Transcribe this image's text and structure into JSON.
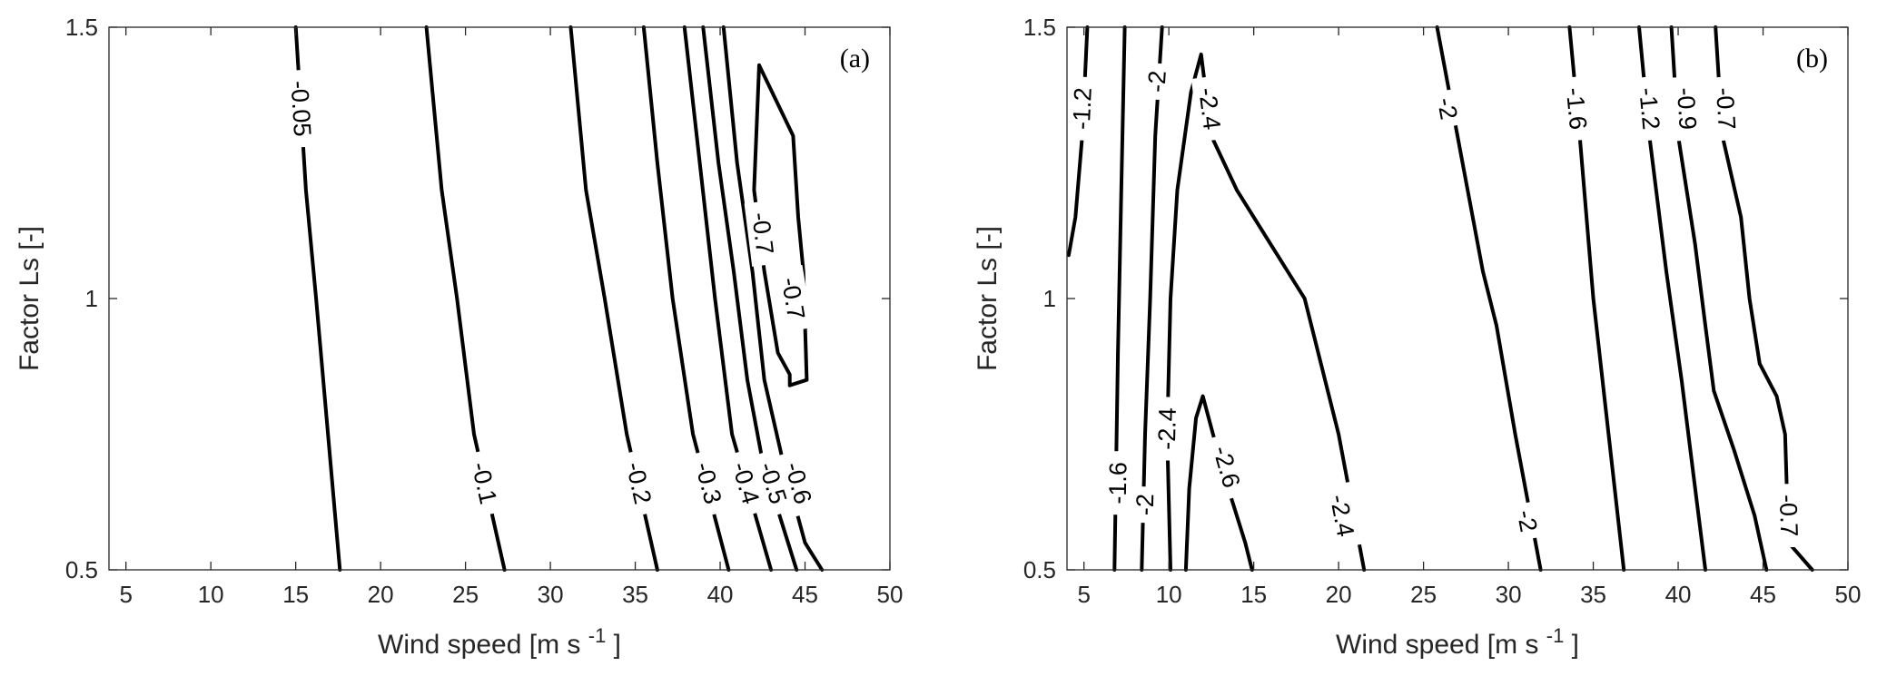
{
  "chart_data": [
    {
      "type": "contour",
      "panel_label": "(a)",
      "xlabel": "Wind speed [m  s",
      "xlabel_superscript": "-1",
      "xlabel_suffix": "]",
      "ylabel": "Factor Ls [-]",
      "xlim": [
        4,
        50
      ],
      "ylim": [
        0.5,
        1.5
      ],
      "xticks": [
        5,
        10,
        15,
        20,
        25,
        30,
        35,
        40,
        45,
        50
      ],
      "yticks": [
        0.5,
        1,
        1.5
      ],
      "xtick_labels": [
        "5",
        "10",
        "15",
        "20",
        "25",
        "30",
        "35",
        "40",
        "45",
        "50"
      ],
      "ytick_labels": [
        "0.5",
        "1",
        "1.5"
      ],
      "contours": [
        {
          "level": "-0.05",
          "points": [
            [
              15.0,
              1.5
            ],
            [
              15.6,
              1.2
            ],
            [
              16.2,
              1.0
            ],
            [
              16.9,
              0.75
            ],
            [
              17.6,
              0.5
            ]
          ],
          "labels": [
            {
              "x": 15.3,
              "y": 1.35,
              "text": "-0.05"
            }
          ]
        },
        {
          "level": "-0.1",
          "points": [
            [
              22.7,
              1.5
            ],
            [
              23.6,
              1.2
            ],
            [
              24.5,
              1.0
            ],
            [
              25.5,
              0.75
            ],
            [
              27.3,
              0.5
            ]
          ],
          "labels": [
            {
              "x": 26.1,
              "y": 0.66,
              "text": "-0.1"
            }
          ]
        },
        {
          "level": "-0.2",
          "points": [
            [
              31.2,
              1.5
            ],
            [
              32.1,
              1.2
            ],
            [
              33.2,
              1.0
            ],
            [
              34.5,
              0.75
            ],
            [
              36.3,
              0.5
            ]
          ],
          "labels": [
            {
              "x": 35.2,
              "y": 0.66,
              "text": "-0.2"
            }
          ]
        },
        {
          "level": "-0.3",
          "points": [
            [
              35.5,
              1.5
            ],
            [
              36.3,
              1.25
            ],
            [
              37.2,
              1.0
            ],
            [
              38.4,
              0.75
            ],
            [
              40.5,
              0.5
            ]
          ],
          "labels": [
            {
              "x": 39.3,
              "y": 0.66,
              "text": "-0.3"
            }
          ]
        },
        {
          "level": "-0.4",
          "points": [
            [
              37.9,
              1.5
            ],
            [
              38.8,
              1.25
            ],
            [
              39.7,
              1.0
            ],
            [
              40.7,
              0.75
            ],
            [
              43.0,
              0.5
            ]
          ],
          "labels": [
            {
              "x": 41.5,
              "y": 0.66,
              "text": "-0.4"
            }
          ]
        },
        {
          "level": "-0.5",
          "points": [
            [
              39.0,
              1.5
            ],
            [
              39.9,
              1.25
            ],
            [
              40.8,
              1.05
            ],
            [
              41.6,
              0.85
            ],
            [
              42.5,
              0.7
            ],
            [
              44.5,
              0.5
            ]
          ],
          "labels": [
            {
              "x": 43.1,
              "y": 0.66,
              "text": "-0.5"
            }
          ]
        },
        {
          "level": "-0.6",
          "points": [
            [
              40.2,
              1.5
            ],
            [
              41.0,
              1.25
            ],
            [
              41.9,
              1.05
            ],
            [
              42.6,
              0.85
            ],
            [
              43.7,
              0.7
            ],
            [
              45.0,
              0.55
            ],
            [
              46.0,
              0.5
            ]
          ],
          "labels": [
            {
              "x": 44.6,
              "y": 0.66,
              "text": "-0.6"
            }
          ]
        },
        {
          "level": "-0.7",
          "points": [
            [
              42.3,
              1.43
            ],
            [
              42.0,
              1.2
            ],
            [
              42.6,
              1.05
            ],
            [
              43.4,
              0.9
            ],
            [
              44.1,
              0.86
            ],
            [
              44.1,
              0.84
            ],
            [
              45.1,
              0.85
            ],
            [
              44.9,
              1.05
            ],
            [
              44.6,
              1.15
            ],
            [
              44.3,
              1.3
            ],
            [
              42.3,
              1.43
            ]
          ],
          "labels": [
            {
              "x": 42.5,
              "y": 1.12,
              "text": "-0.7"
            },
            {
              "x": 44.3,
              "y": 1.0,
              "text": "-0.7"
            }
          ]
        }
      ]
    },
    {
      "type": "contour",
      "panel_label": "(b)",
      "xlabel": "Wind speed [m  s",
      "xlabel_superscript": "-1",
      "xlabel_suffix": "]",
      "ylabel": "Factor Ls [-]",
      "xlim": [
        4,
        50
      ],
      "ylim": [
        0.5,
        1.5
      ],
      "xticks": [
        5,
        10,
        15,
        20,
        25,
        30,
        35,
        40,
        45,
        50
      ],
      "yticks": [
        0.5,
        1,
        1.5
      ],
      "xtick_labels": [
        "5",
        "10",
        "15",
        "20",
        "25",
        "30",
        "35",
        "40",
        "45",
        "50"
      ],
      "ytick_labels": [
        "0.5",
        "1",
        "1.5"
      ],
      "contours": [
        {
          "level": "-1.2",
          "points": [
            [
              5.2,
              1.5
            ],
            [
              4.9,
              1.3
            ],
            [
              4.5,
              1.15
            ],
            [
              4.1,
              1.08
            ]
          ],
          "labels": [
            {
              "x": 4.9,
              "y": 1.35,
              "text": "-1.2"
            }
          ]
        },
        {
          "level": "-1.6",
          "points": [
            [
              7.4,
              1.5
            ],
            [
              7.2,
              1.2
            ],
            [
              7.0,
              0.9
            ],
            [
              6.9,
              0.7
            ],
            [
              6.8,
              0.5
            ]
          ],
          "labels": [
            {
              "x": 7.0,
              "y": 0.66,
              "text": "-1.6"
            }
          ]
        },
        {
          "level": "-2",
          "points": [
            [
              9.6,
              1.5
            ],
            [
              9.2,
              1.3
            ],
            [
              8.9,
              1.0
            ],
            [
              8.6,
              0.75
            ],
            [
              8.4,
              0.5
            ]
          ],
          "labels": [
            {
              "x": 9.3,
              "y": 1.4,
              "text": "-2"
            },
            {
              "x": 8.6,
              "y": 0.62,
              "text": "-2"
            }
          ]
        },
        {
          "level": "-2.4",
          "points": [
            [
              10.1,
              0.5
            ],
            [
              9.9,
              0.75
            ],
            [
              10.1,
              1.0
            ],
            [
              10.5,
              1.2
            ],
            [
              11.3,
              1.38
            ],
            [
              11.9,
              1.45
            ],
            [
              12.5,
              1.3
            ],
            [
              14.0,
              1.2
            ],
            [
              16.0,
              1.1
            ],
            [
              18.0,
              1.0
            ],
            [
              20.0,
              0.75
            ],
            [
              21.5,
              0.5
            ]
          ],
          "labels": [
            {
              "x": 9.9,
              "y": 0.76,
              "text": "-2.4"
            },
            {
              "x": 12.4,
              "y": 1.35,
              "text": "-2.4"
            },
            {
              "x": 20.2,
              "y": 0.6,
              "text": "-2.4"
            }
          ]
        },
        {
          "level": "-2.6",
          "points": [
            [
              11.0,
              0.5
            ],
            [
              11.2,
              0.65
            ],
            [
              11.6,
              0.78
            ],
            [
              12.0,
              0.82
            ],
            [
              12.6,
              0.75
            ],
            [
              13.5,
              0.65
            ],
            [
              14.5,
              0.55
            ],
            [
              14.9,
              0.5
            ]
          ],
          "labels": [
            {
              "x": 13.4,
              "y": 0.69,
              "text": "-2.6"
            }
          ]
        },
        {
          "level": "-2",
          "points": [
            [
              25.8,
              1.5
            ],
            [
              27.0,
              1.3
            ],
            [
              28.5,
              1.05
            ],
            [
              29.3,
              0.95
            ],
            [
              30.4,
              0.75
            ],
            [
              31.3,
              0.6
            ],
            [
              31.9,
              0.5
            ]
          ],
          "labels": [
            {
              "x": 26.4,
              "y": 1.35,
              "text": "-2"
            },
            {
              "x": 31.1,
              "y": 0.59,
              "text": "-2"
            }
          ]
        },
        {
          "level": "-1.6",
          "points": [
            [
              33.6,
              1.5
            ],
            [
              34.2,
              1.3
            ],
            [
              35.0,
              1.0
            ],
            [
              35.9,
              0.75
            ],
            [
              36.8,
              0.5
            ]
          ],
          "labels": [
            {
              "x": 34.0,
              "y": 1.35,
              "text": "-1.6"
            }
          ]
        },
        {
          "level": "-1.2",
          "points": [
            [
              37.7,
              1.5
            ],
            [
              38.3,
              1.3
            ],
            [
              39.3,
              1.05
            ],
            [
              40.2,
              0.85
            ],
            [
              40.8,
              0.7
            ],
            [
              41.6,
              0.5
            ]
          ],
          "labels": [
            {
              "x": 38.3,
              "y": 1.35,
              "text": "-1.2"
            }
          ]
        },
        {
          "level": "-0.9",
          "points": [
            [
              39.6,
              1.5
            ],
            [
              40.0,
              1.3
            ],
            [
              41.0,
              1.1
            ],
            [
              41.6,
              0.95
            ],
            [
              42.1,
              0.83
            ],
            [
              43.3,
              0.72
            ],
            [
              44.5,
              0.6
            ],
            [
              45.2,
              0.5
            ]
          ],
          "labels": [
            {
              "x": 40.5,
              "y": 1.35,
              "text": "-0.9"
            }
          ]
        },
        {
          "level": "-0.7",
          "points": [
            [
              42.2,
              1.5
            ],
            [
              42.6,
              1.3
            ],
            [
              43.7,
              1.15
            ],
            [
              44.2,
              1.0
            ],
            [
              44.8,
              0.88
            ],
            [
              45.8,
              0.82
            ],
            [
              46.3,
              0.75
            ],
            [
              46.4,
              0.65
            ],
            [
              46.5,
              0.55
            ],
            [
              47.9,
              0.5
            ]
          ],
          "labels": [
            {
              "x": 42.8,
              "y": 1.35,
              "text": "-0.7"
            },
            {
              "x": 46.5,
              "y": 0.6,
              "text": "-0.7"
            }
          ]
        }
      ]
    }
  ]
}
